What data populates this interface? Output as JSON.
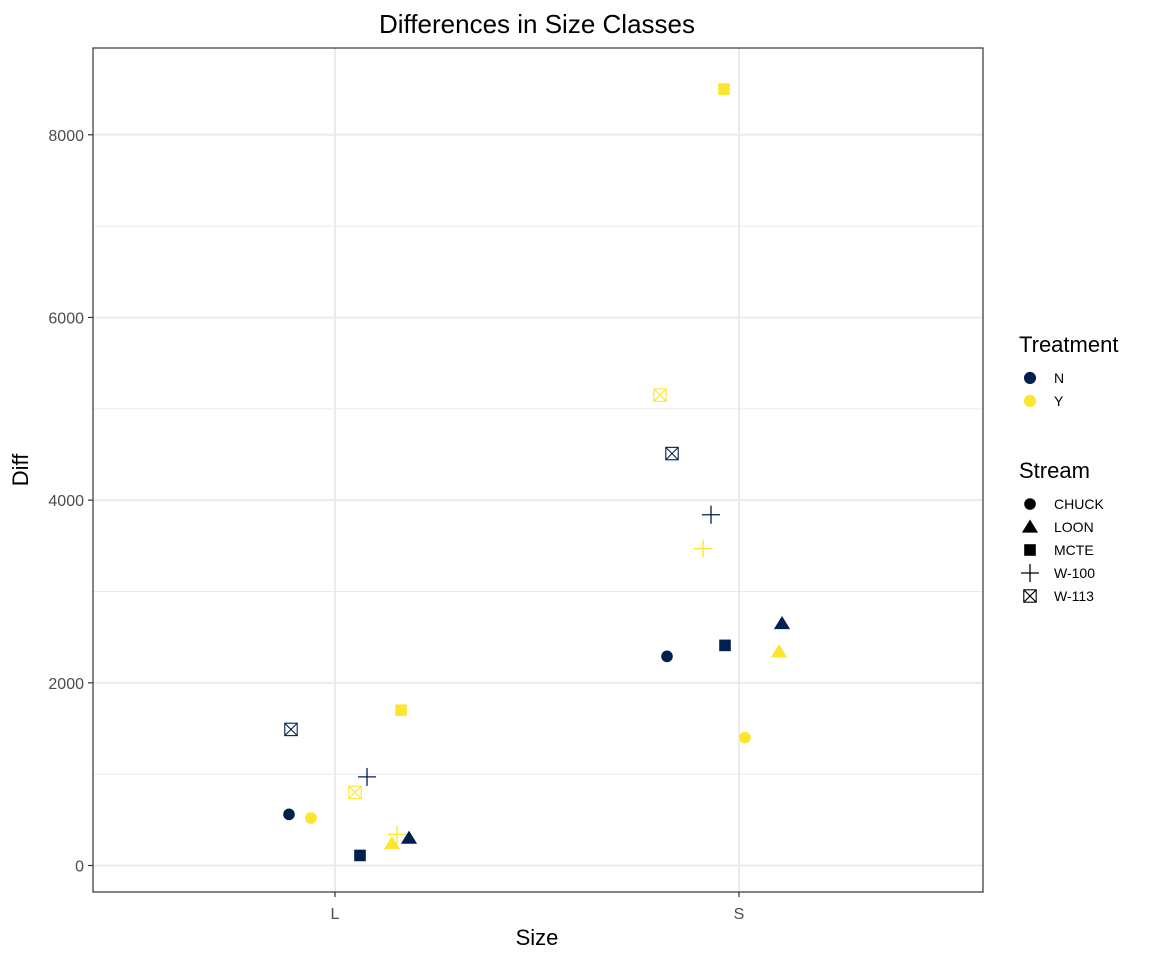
{
  "chart_data": {
    "type": "scatter",
    "title": "Differences in Size Classes",
    "xlabel": "Size",
    "ylabel": "Diff",
    "categories": [
      "L",
      "S"
    ],
    "yticks": [
      0,
      2000,
      4000,
      6000,
      8000
    ],
    "ytick_labels": [
      "0",
      "2000",
      "4000",
      "6000",
      "8000"
    ],
    "ylim": [
      -290,
      8950
    ],
    "grid": true,
    "legend_placement": "right",
    "legends": {
      "treatment": {
        "title": "Treatment",
        "entries": [
          {
            "label": "N",
            "color": "#00204d"
          },
          {
            "label": "Y",
            "color": "#fde52d"
          }
        ]
      },
      "stream": {
        "title": "Stream",
        "entries": [
          {
            "label": "CHUCK",
            "shape": "circle"
          },
          {
            "label": "LOON",
            "shape": "triangle"
          },
          {
            "label": "MCTE",
            "shape": "square"
          },
          {
            "label": "W-100",
            "shape": "plus"
          },
          {
            "label": "W-113",
            "shape": "boxcross"
          }
        ]
      }
    },
    "points": [
      {
        "size": "L",
        "treatment": "N",
        "stream": "CHUCK",
        "y": 560
      },
      {
        "size": "L",
        "treatment": "Y",
        "stream": "CHUCK",
        "y": 520
      },
      {
        "size": "L",
        "treatment": "N",
        "stream": "LOON",
        "y": 300
      },
      {
        "size": "L",
        "treatment": "Y",
        "stream": "LOON",
        "y": 240
      },
      {
        "size": "L",
        "treatment": "N",
        "stream": "MCTE",
        "y": 110
      },
      {
        "size": "L",
        "treatment": "Y",
        "stream": "MCTE",
        "y": 1700
      },
      {
        "size": "L",
        "treatment": "N",
        "stream": "W-100",
        "y": 970
      },
      {
        "size": "L",
        "treatment": "Y",
        "stream": "W-100",
        "y": 340
      },
      {
        "size": "L",
        "treatment": "N",
        "stream": "W-113",
        "y": 1490
      },
      {
        "size": "L",
        "treatment": "Y",
        "stream": "W-113",
        "y": 800
      },
      {
        "size": "S",
        "treatment": "N",
        "stream": "CHUCK",
        "y": 2290
      },
      {
        "size": "S",
        "treatment": "Y",
        "stream": "CHUCK",
        "y": 1400
      },
      {
        "size": "S",
        "treatment": "N",
        "stream": "LOON",
        "y": 2650
      },
      {
        "size": "S",
        "treatment": "Y",
        "stream": "LOON",
        "y": 2340
      },
      {
        "size": "S",
        "treatment": "N",
        "stream": "MCTE",
        "y": 2410
      },
      {
        "size": "S",
        "treatment": "Y",
        "stream": "MCTE",
        "y": 8500
      },
      {
        "size": "S",
        "treatment": "N",
        "stream": "W-100",
        "y": 3840
      },
      {
        "size": "S",
        "treatment": "Y",
        "stream": "W-100",
        "y": 3470
      },
      {
        "size": "S",
        "treatment": "N",
        "stream": "W-113",
        "y": 4510
      },
      {
        "size": "S",
        "treatment": "Y",
        "stream": "W-113",
        "y": 5150
      }
    ]
  }
}
